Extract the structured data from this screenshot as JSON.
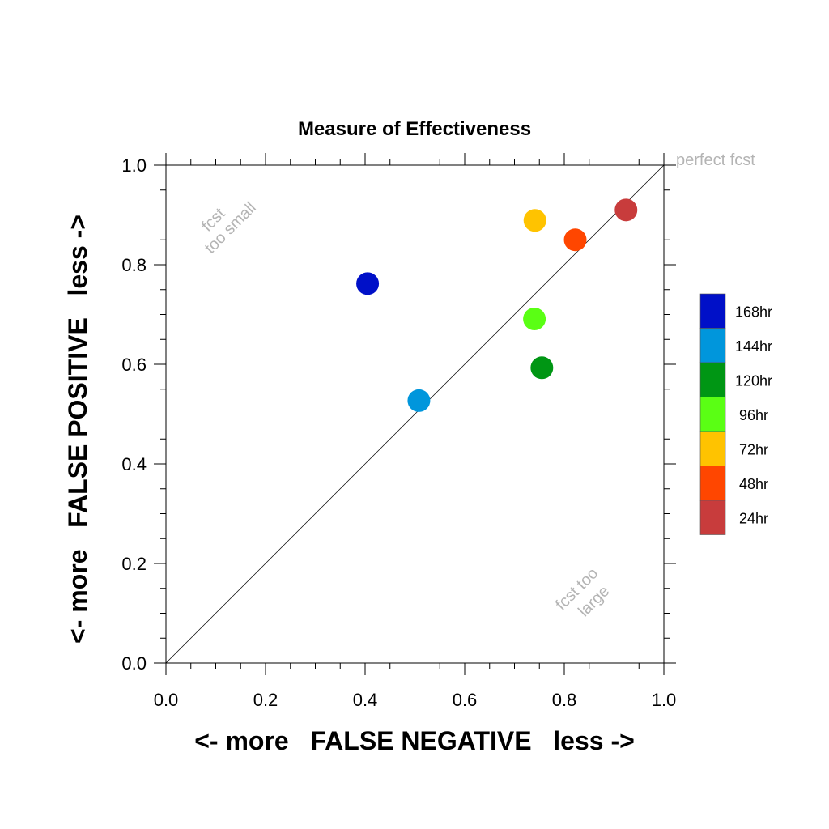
{
  "chart_data": {
    "type": "scatter",
    "title": "Measure of Effectiveness",
    "xlabel": "<- more   FALSE NEGATIVE   less ->",
    "ylabel": "<- more   FALSE POSITIVE   less ->",
    "xlim": [
      0,
      1
    ],
    "ylim": [
      0,
      1
    ],
    "xticks": [
      "0.0",
      "0.2",
      "0.4",
      "0.6",
      "0.8",
      "1.0"
    ],
    "yticks": [
      "0.0",
      "0.2",
      "0.4",
      "0.6",
      "0.8",
      "1.0"
    ],
    "grid": false,
    "reference_line": "y = x",
    "annotations": {
      "perfect": "perfect fcst",
      "too_small": [
        "fcst",
        "too small"
      ],
      "too_large": [
        "fcst too",
        "large"
      ]
    },
    "legend_position": "right",
    "series": [
      {
        "name": "168hr",
        "color": "#0010c8",
        "x": 0.405,
        "y": 0.762
      },
      {
        "name": "144hr",
        "color": "#0096dc",
        "x": 0.508,
        "y": 0.527
      },
      {
        "name": "120hr",
        "color": "#009614",
        "x": 0.755,
        "y": 0.593
      },
      {
        "name": "96hr",
        "color": "#5aff14",
        "x": 0.74,
        "y": 0.691
      },
      {
        "name": "72hr",
        "color": "#ffc300",
        "x": 0.741,
        "y": 0.889
      },
      {
        "name": "48hr",
        "color": "#ff4600",
        "x": 0.822,
        "y": 0.85
      },
      {
        "name": "24hr",
        "color": "#c83c3c",
        "x": 0.924,
        "y": 0.91
      }
    ]
  }
}
